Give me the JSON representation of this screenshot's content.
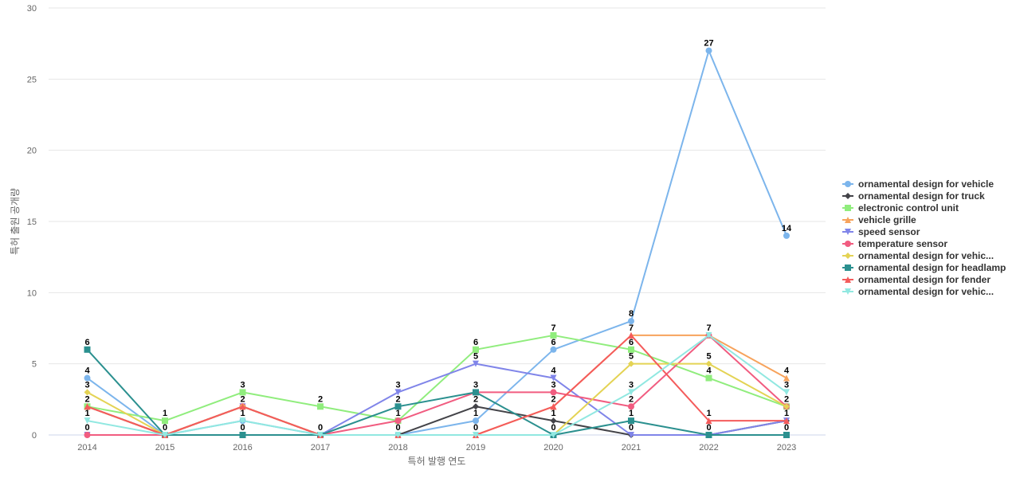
{
  "chart_data": {
    "type": "line",
    "title": "",
    "xlabel": "특허 발행 연도",
    "ylabel": "특허 출원 공개량",
    "ylim": [
      0,
      30
    ],
    "yticks": [
      0,
      5,
      10,
      15,
      20,
      25,
      30
    ],
    "grid": true,
    "legend_position": "right",
    "categories": [
      "2014",
      "2015",
      "2016",
      "2017",
      "2018",
      "2019",
      "2020",
      "2021",
      "2022",
      "2023"
    ],
    "series": [
      {
        "name": "ornamental design for vehicle",
        "color": "#7cb5ec",
        "marker": "circle",
        "values": [
          4,
          0,
          1,
          0,
          0,
          1,
          6,
          8,
          27,
          14
        ]
      },
      {
        "name": "ornamental design for truck",
        "color": "#434348",
        "marker": "diamond",
        "values": [
          2,
          0,
          2,
          0,
          0,
          2,
          1,
          0,
          0,
          1
        ]
      },
      {
        "name": "electronic control unit",
        "color": "#90ed7d",
        "marker": "square",
        "values": [
          2,
          1,
          3,
          2,
          1,
          6,
          7,
          6,
          4,
          2
        ]
      },
      {
        "name": "vehicle grille",
        "color": "#f7a35c",
        "marker": "triangle",
        "values": [
          2,
          0,
          2,
          0,
          0,
          0,
          2,
          7,
          7,
          4
        ]
      },
      {
        "name": "speed sensor",
        "color": "#8085e9",
        "marker": "triangle-down",
        "values": [
          0,
          0,
          2,
          0,
          3,
          5,
          4,
          0,
          0,
          1
        ]
      },
      {
        "name": "temperature sensor",
        "color": "#f15c80",
        "marker": "circle",
        "values": [
          0,
          0,
          2,
          0,
          1,
          3,
          3,
          2,
          7,
          2
        ]
      },
      {
        "name": "ornamental design for vehic...",
        "color": "#e4d354",
        "marker": "diamond",
        "values": [
          3,
          0,
          2,
          0,
          0,
          0,
          0,
          5,
          5,
          2
        ]
      },
      {
        "name": "ornamental design for headlamp",
        "color": "#2b908f",
        "marker": "square",
        "values": [
          6,
          0,
          0,
          0,
          2,
          3,
          0,
          1,
          0,
          0
        ]
      },
      {
        "name": "ornamental design for fender",
        "color": "#f45b5b",
        "marker": "triangle",
        "values": [
          2,
          0,
          2,
          0,
          0,
          0,
          2,
          7,
          1,
          1
        ]
      },
      {
        "name": "ornamental design for vehic...",
        "color": "#91e8e1",
        "marker": "triangle-down",
        "values": [
          1,
          0,
          1,
          0,
          0,
          0,
          0,
          3,
          7,
          3
        ]
      }
    ]
  }
}
